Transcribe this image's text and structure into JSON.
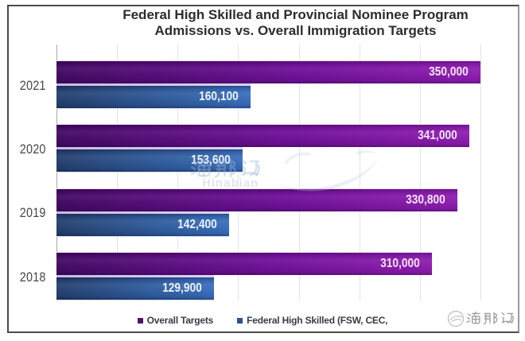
{
  "chart_data": {
    "type": "bar",
    "orientation": "horizontal",
    "title": "Federal High Skilled and Provincial Nominee Program Admissions vs. Overall Immigration Targets",
    "title_line1": "Federal High Skilled and Provincial Nominee Program",
    "title_line2": "Admissions vs. Overall Immigration Targets",
    "categories": [
      "2021",
      "2020",
      "2019",
      "2018"
    ],
    "series": [
      {
        "name": "Overall Targets",
        "values": [
          350000,
          341000,
          330800,
          310000
        ],
        "labels": [
          "350,000",
          "341,000",
          "330,800",
          "310,000"
        ],
        "color_start": "#420a62",
        "color_end": "#9321b4"
      },
      {
        "name": "Federal High Skilled (FSW, CEC,",
        "values": [
          160100,
          153600,
          142400,
          129900
        ],
        "labels": [
          "160,100",
          "153,600",
          "142,400",
          "129,900"
        ],
        "color_start": "#243f6d",
        "color_end": "#3e74c3"
      }
    ],
    "x_axis": {
      "min": 0,
      "max": 360000,
      "gridline_interval": 50000,
      "tick_labels_visible": false
    },
    "grid": "vertical",
    "legend_position": "bottom",
    "legend": [
      "Overall Targets",
      "Federal High Skilled (FSW, CEC,"
    ],
    "legend_colors": [
      "#51146e",
      "#2d5191"
    ]
  },
  "watermark_center": {
    "cjk": "海那边",
    "latin": "Hinabian"
  },
  "corner_logo": {
    "text": "海那边"
  }
}
